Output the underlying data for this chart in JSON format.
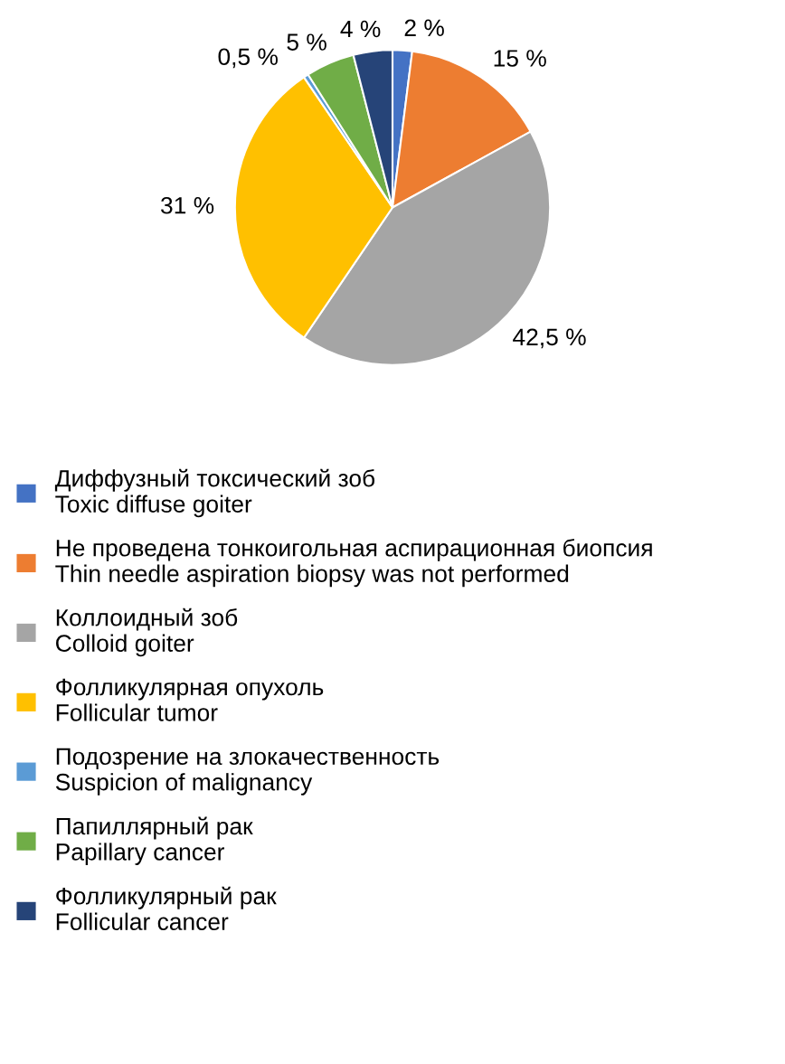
{
  "chart_data": {
    "type": "pie",
    "categories": [
      "Диффузный токсический зоб\nToxic diffuse goiter",
      "Не проведена тонкоигольная аспирационная биопсия\nThin needle aspiration biopsy was not performed",
      "Коллоидный зоб\nColloid goiter",
      "Фолликулярная опухоль\nFollicular tumor",
      "Подозрение на злокачественность\nSuspicion of malignancy",
      "Папиллярный рак\nPapillary cancer",
      "Фолликулярный рак\nFollicular cancer"
    ],
    "values": [
      2,
      15,
      42.5,
      31,
      0.5,
      5,
      4
    ],
    "value_labels": [
      "2 %",
      "15 %",
      "42,5 %",
      "31 %",
      "0,5 %",
      "5 %",
      "4 %"
    ],
    "colors": [
      "#4472c4",
      "#ed7d31",
      "#a5a5a5",
      "#ffc000",
      "#5b9bd5",
      "#70ad47",
      "#264478"
    ],
    "legend": "bottom"
  }
}
